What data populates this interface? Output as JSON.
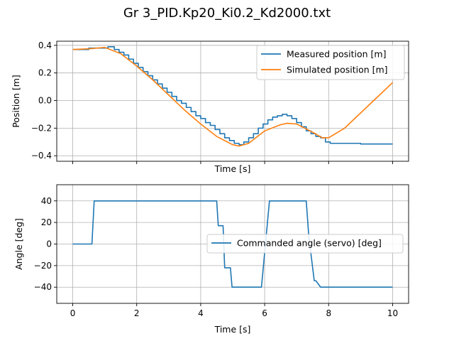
{
  "figure": {
    "suptitle": "Gr 3_PID.Kp20_Ki0.2_Kd2000.txt"
  },
  "chart_data": [
    {
      "type": "line",
      "xlabel": "Time [s]",
      "ylabel": "Position [m]",
      "xlim": [
        -0.5,
        10.5
      ],
      "ylim": [
        -0.44,
        0.43
      ],
      "xticks": [
        0,
        2,
        4,
        6,
        8,
        10
      ],
      "show_xtick_labels": false,
      "yticks": [
        -0.4,
        -0.2,
        0.0,
        0.2,
        0.4
      ],
      "ytick_labels": [
        "−0.4",
        "−0.2",
        "0.0",
        "0.2",
        "0.4"
      ],
      "grid": true,
      "legend": "top-right",
      "series": [
        {
          "name": "Measured position [m]",
          "color": "#1f77b4",
          "step": true,
          "x": [
            0,
            0.5,
            0.8,
            1.1,
            1.3,
            1.45,
            1.6,
            1.75,
            1.9,
            2.05,
            2.2,
            2.35,
            2.5,
            2.65,
            2.8,
            2.95,
            3.1,
            3.25,
            3.4,
            3.55,
            3.7,
            3.85,
            4.0,
            4.15,
            4.3,
            4.45,
            4.6,
            4.75,
            4.9,
            5.05,
            5.2,
            5.35,
            5.5,
            5.65,
            5.8,
            5.95,
            6.1,
            6.25,
            6.4,
            6.55,
            6.7,
            6.85,
            7.0,
            7.15,
            7.3,
            7.45,
            7.6,
            7.75,
            7.9,
            8.05,
            8.5,
            9.0,
            10.0
          ],
          "y": [
            0.37,
            0.38,
            0.38,
            0.39,
            0.37,
            0.35,
            0.33,
            0.3,
            0.27,
            0.24,
            0.21,
            0.18,
            0.15,
            0.12,
            0.09,
            0.06,
            0.03,
            0.0,
            -0.02,
            -0.05,
            -0.08,
            -0.11,
            -0.13,
            -0.16,
            -0.18,
            -0.21,
            -0.24,
            -0.27,
            -0.29,
            -0.31,
            -0.32,
            -0.3,
            -0.27,
            -0.24,
            -0.2,
            -0.17,
            -0.14,
            -0.12,
            -0.11,
            -0.1,
            -0.11,
            -0.13,
            -0.16,
            -0.19,
            -0.22,
            -0.24,
            -0.26,
            -0.27,
            -0.3,
            -0.31,
            -0.31,
            -0.315,
            -0.315
          ]
        },
        {
          "name": "Simulated position [m]",
          "color": "#ff7f0e",
          "step": false,
          "x": [
            0,
            0.5,
            1.0,
            1.5,
            2.0,
            2.5,
            3.0,
            3.5,
            4.0,
            4.5,
            5.0,
            5.2,
            5.5,
            6.0,
            6.5,
            6.7,
            7.0,
            7.5,
            7.8,
            8.0,
            8.5,
            9.0,
            9.5,
            10.0
          ],
          "y": [
            0.37,
            0.375,
            0.385,
            0.34,
            0.25,
            0.15,
            0.04,
            -0.07,
            -0.17,
            -0.26,
            -0.32,
            -0.33,
            -0.31,
            -0.22,
            -0.175,
            -0.165,
            -0.17,
            -0.23,
            -0.27,
            -0.27,
            -0.2,
            -0.09,
            0.02,
            0.13
          ]
        }
      ]
    },
    {
      "type": "line",
      "xlabel": "Time [s]",
      "ylabel": "Angle [deg]",
      "xlim": [
        -0.5,
        10.5
      ],
      "ylim": [
        -55,
        55
      ],
      "xticks": [
        0,
        2,
        4,
        6,
        8,
        10
      ],
      "xtick_labels": [
        "0",
        "2",
        "4",
        "6",
        "8",
        "10"
      ],
      "show_xtick_labels": true,
      "yticks": [
        -40,
        -20,
        0,
        20,
        40
      ],
      "ytick_labels": [
        "−40",
        "−20",
        "0",
        "20",
        "40"
      ],
      "grid": true,
      "legend": "center-right",
      "series": [
        {
          "name": "Commanded angle (servo) [deg]",
          "color": "#1f77b4",
          "step": false,
          "x": [
            0,
            0.6,
            0.67,
            4.5,
            4.55,
            4.7,
            4.75,
            4.93,
            4.98,
            5.9,
            6.15,
            6.2,
            7.3,
            7.38,
            7.55,
            7.6,
            7.75,
            7.8,
            10.0
          ],
          "y": [
            0,
            0,
            40,
            40,
            17,
            17,
            -22,
            -22,
            -40,
            -40,
            40,
            40,
            40,
            7,
            -34,
            -34,
            -40,
            -40,
            -40
          ]
        }
      ]
    }
  ]
}
